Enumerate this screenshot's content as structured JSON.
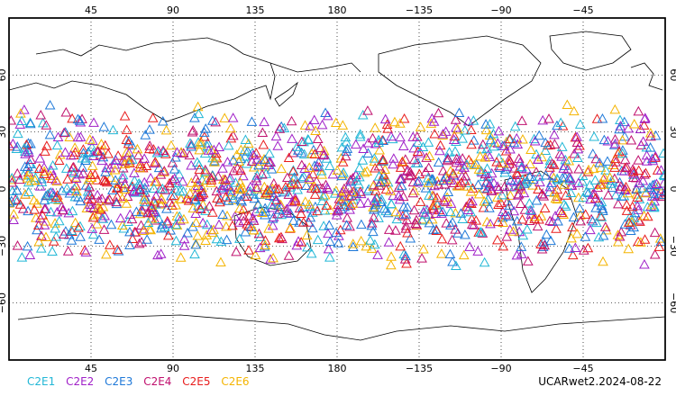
{
  "chart_data": {
    "type": "scatter",
    "projection": "equirectangular",
    "lon_range": [
      0,
      360
    ],
    "lat_range": [
      -90,
      90
    ],
    "grid": true,
    "top_lon_ticks": [
      "45",
      "90",
      "135",
      "180",
      "−135",
      "−90",
      "−45"
    ],
    "bottom_lon_ticks": [
      "45",
      "90",
      "135",
      "180",
      "−135",
      "−90",
      "−45"
    ],
    "lat_ticks": [
      "60",
      "30",
      "0",
      "−30",
      "−60"
    ],
    "lat_tick_values": [
      60,
      30,
      0,
      -30,
      -60
    ],
    "lon_tick_values": [
      45,
      90,
      135,
      180,
      225,
      270,
      315
    ],
    "marker": "open-triangle",
    "data_lat_band": [
      -42,
      45
    ],
    "series": [
      {
        "name": "C2E1",
        "color": "#22b7d6"
      },
      {
        "name": "C2E2",
        "color": "#a020c8"
      },
      {
        "name": "C2E3",
        "color": "#1e78d8"
      },
      {
        "name": "C2E4",
        "color": "#c0106e"
      },
      {
        "name": "C2E5",
        "color": "#e81c1c"
      },
      {
        "name": "C2E6",
        "color": "#f4b400"
      }
    ],
    "stamp": "UCARwet2.2024-08-22"
  }
}
